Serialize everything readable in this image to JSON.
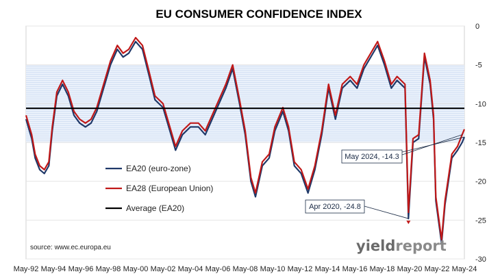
{
  "chart_data": {
    "type": "line",
    "title": "EU CONSUMER CONFIDENCE INDEX",
    "xlabel": "",
    "ylabel": "",
    "x_tick_labels": [
      "May-92",
      "May-94",
      "May-96",
      "May-98",
      "May-00",
      "May-02",
      "May-04",
      "May-06",
      "May-08",
      "May-10",
      "May-12",
      "May-14",
      "May-16",
      "May-18",
      "May-20",
      "May-22",
      "May-24"
    ],
    "y_ticks": [
      0,
      -5,
      -10,
      -15,
      -20,
      -25,
      -30
    ],
    "ylim": [
      -30,
      0
    ],
    "xlim": [
      "1992-05",
      "2024-05"
    ],
    "grid": "horizontal",
    "legend_position": "left",
    "band": {
      "from": -5,
      "to": -15
    },
    "series": [
      {
        "name": "EA20 (euro-zone)",
        "color": "#1f3868",
        "points": [
          [
            "1992-05",
            -12
          ],
          [
            "1992-10",
            -14.5
          ],
          [
            "1993-01",
            -17
          ],
          [
            "1993-05",
            -18.5
          ],
          [
            "1993-09",
            -19
          ],
          [
            "1994-01",
            -18
          ],
          [
            "1994-04",
            -13.5
          ],
          [
            "1994-08",
            -9
          ],
          [
            "1995-01",
            -7.5
          ],
          [
            "1995-06",
            -9
          ],
          [
            "1995-11",
            -11.5
          ],
          [
            "1996-04",
            -12.5
          ],
          [
            "1996-09",
            -13
          ],
          [
            "1997-02",
            -12.5
          ],
          [
            "1997-07",
            -11
          ],
          [
            "1998-01",
            -8
          ],
          [
            "1998-07",
            -5
          ],
          [
            "1999-01",
            -3
          ],
          [
            "1999-06",
            -4
          ],
          [
            "1999-11",
            -3.5
          ],
          [
            "2000-05",
            -2
          ],
          [
            "2000-11",
            -3
          ],
          [
            "2001-05",
            -6.5
          ],
          [
            "2001-10",
            -9.5
          ],
          [
            "2002-05",
            -10.5
          ],
          [
            "2002-11",
            -13.5
          ],
          [
            "2003-04",
            -16
          ],
          [
            "2003-10",
            -14
          ],
          [
            "2004-05",
            -13
          ],
          [
            "2004-12",
            -13
          ],
          [
            "2005-06",
            -14
          ],
          [
            "2005-12",
            -12
          ],
          [
            "2006-06",
            -10
          ],
          [
            "2006-12",
            -8
          ],
          [
            "2007-06",
            -5.5
          ],
          [
            "2007-12",
            -10
          ],
          [
            "2008-05",
            -14
          ],
          [
            "2008-10",
            -20
          ],
          [
            "2009-02",
            -22
          ],
          [
            "2009-08",
            -18
          ],
          [
            "2010-02",
            -17
          ],
          [
            "2010-07",
            -13.5
          ],
          [
            "2011-02",
            -11
          ],
          [
            "2011-07",
            -13.5
          ],
          [
            "2011-12",
            -18
          ],
          [
            "2012-06",
            -19
          ],
          [
            "2012-12",
            -21.5
          ],
          [
            "2013-06",
            -18.5
          ],
          [
            "2013-12",
            -14
          ],
          [
            "2014-06",
            -8
          ],
          [
            "2014-12",
            -12
          ],
          [
            "2015-06",
            -8
          ],
          [
            "2016-01",
            -7
          ],
          [
            "2016-07",
            -8
          ],
          [
            "2017-01",
            -5.5
          ],
          [
            "2017-07",
            -4
          ],
          [
            "2018-01",
            -2.5
          ],
          [
            "2018-07",
            -5
          ],
          [
            "2019-01",
            -8
          ],
          [
            "2019-06",
            -7
          ],
          [
            "2020-01",
            -8
          ],
          [
            "2020-04",
            -24.8
          ],
          [
            "2020-08",
            -15
          ],
          [
            "2021-01",
            -14.5
          ],
          [
            "2021-06",
            -4
          ],
          [
            "2021-11",
            -7.5
          ],
          [
            "2022-02",
            -12
          ],
          [
            "2022-04",
            -22.5
          ],
          [
            "2022-09",
            -28
          ],
          [
            "2022-12",
            -23
          ],
          [
            "2023-06",
            -17
          ],
          [
            "2023-11",
            -16
          ],
          [
            "2024-03",
            -15
          ],
          [
            "2024-05",
            -14.3
          ]
        ]
      },
      {
        "name": "EA28 (European Union)",
        "color": "#c01818",
        "points": [
          [
            "1992-05",
            -11.5
          ],
          [
            "1992-10",
            -14
          ],
          [
            "1993-01",
            -16.5
          ],
          [
            "1993-05",
            -18
          ],
          [
            "1993-09",
            -18.5
          ],
          [
            "1994-01",
            -17.5
          ],
          [
            "1994-04",
            -13
          ],
          [
            "1994-08",
            -8.5
          ],
          [
            "1995-01",
            -7
          ],
          [
            "1995-06",
            -8.5
          ],
          [
            "1995-11",
            -11
          ],
          [
            "1996-04",
            -12
          ],
          [
            "1996-09",
            -12.5
          ],
          [
            "1997-02",
            -12
          ],
          [
            "1997-07",
            -10.5
          ],
          [
            "1998-01",
            -7.5
          ],
          [
            "1998-07",
            -4.5
          ],
          [
            "1999-01",
            -2.5
          ],
          [
            "1999-06",
            -3.5
          ],
          [
            "1999-11",
            -3
          ],
          [
            "2000-05",
            -1.5
          ],
          [
            "2000-11",
            -2.5
          ],
          [
            "2001-05",
            -6
          ],
          [
            "2001-10",
            -9
          ],
          [
            "2002-05",
            -10
          ],
          [
            "2002-11",
            -13
          ],
          [
            "2003-04",
            -15.5
          ],
          [
            "2003-10",
            -13.5
          ],
          [
            "2004-05",
            -12.5
          ],
          [
            "2004-12",
            -12.5
          ],
          [
            "2005-06",
            -13.5
          ],
          [
            "2005-12",
            -11.5
          ],
          [
            "2006-06",
            -9.5
          ],
          [
            "2006-12",
            -7.5
          ],
          [
            "2007-06",
            -5
          ],
          [
            "2007-12",
            -9.5
          ],
          [
            "2008-05",
            -13.5
          ],
          [
            "2008-10",
            -19.5
          ],
          [
            "2009-02",
            -21.5
          ],
          [
            "2009-08",
            -17.5
          ],
          [
            "2010-02",
            -16.5
          ],
          [
            "2010-07",
            -13
          ],
          [
            "2011-02",
            -10.5
          ],
          [
            "2011-07",
            -13
          ],
          [
            "2011-12",
            -17.5
          ],
          [
            "2012-06",
            -18.5
          ],
          [
            "2012-12",
            -21
          ],
          [
            "2013-06",
            -18
          ],
          [
            "2013-12",
            -13.5
          ],
          [
            "2014-06",
            -7.5
          ],
          [
            "2014-12",
            -11.5
          ],
          [
            "2015-06",
            -7.5
          ],
          [
            "2016-01",
            -6.5
          ],
          [
            "2016-07",
            -7.5
          ],
          [
            "2017-01",
            -5
          ],
          [
            "2017-07",
            -3.5
          ],
          [
            "2018-01",
            -2
          ],
          [
            "2018-07",
            -4.5
          ],
          [
            "2019-01",
            -7.5
          ],
          [
            "2019-06",
            -6.5
          ],
          [
            "2020-01",
            -7.5
          ],
          [
            "2020-04",
            -24
          ],
          [
            "2020-08",
            -14.5
          ],
          [
            "2021-01",
            -14
          ],
          [
            "2021-06",
            -3.5
          ],
          [
            "2021-11",
            -7
          ],
          [
            "2022-02",
            -11.5
          ],
          [
            "2022-04",
            -22
          ],
          [
            "2022-09",
            -27.5
          ],
          [
            "2022-12",
            -22.5
          ],
          [
            "2023-06",
            -16.5
          ],
          [
            "2023-11",
            -15.5
          ],
          [
            "2024-03",
            -14
          ],
          [
            "2024-05",
            -13.3
          ]
        ]
      },
      {
        "name": "Average (EA20)",
        "color": "#000000",
        "points": [
          [
            "1992-05",
            -10.6
          ],
          [
            "2024-05",
            -10.6
          ]
        ]
      }
    ],
    "annotations": [
      {
        "label": "May 2024, -14.3",
        "x": "2024-05",
        "y": -14.3
      },
      {
        "label": "Apr 2020, -24.8",
        "x": "2020-04",
        "y": -24.8
      }
    ]
  },
  "source": "source: www.ec.europa.eu",
  "brand": {
    "part1": "yield",
    "part2": "report"
  }
}
